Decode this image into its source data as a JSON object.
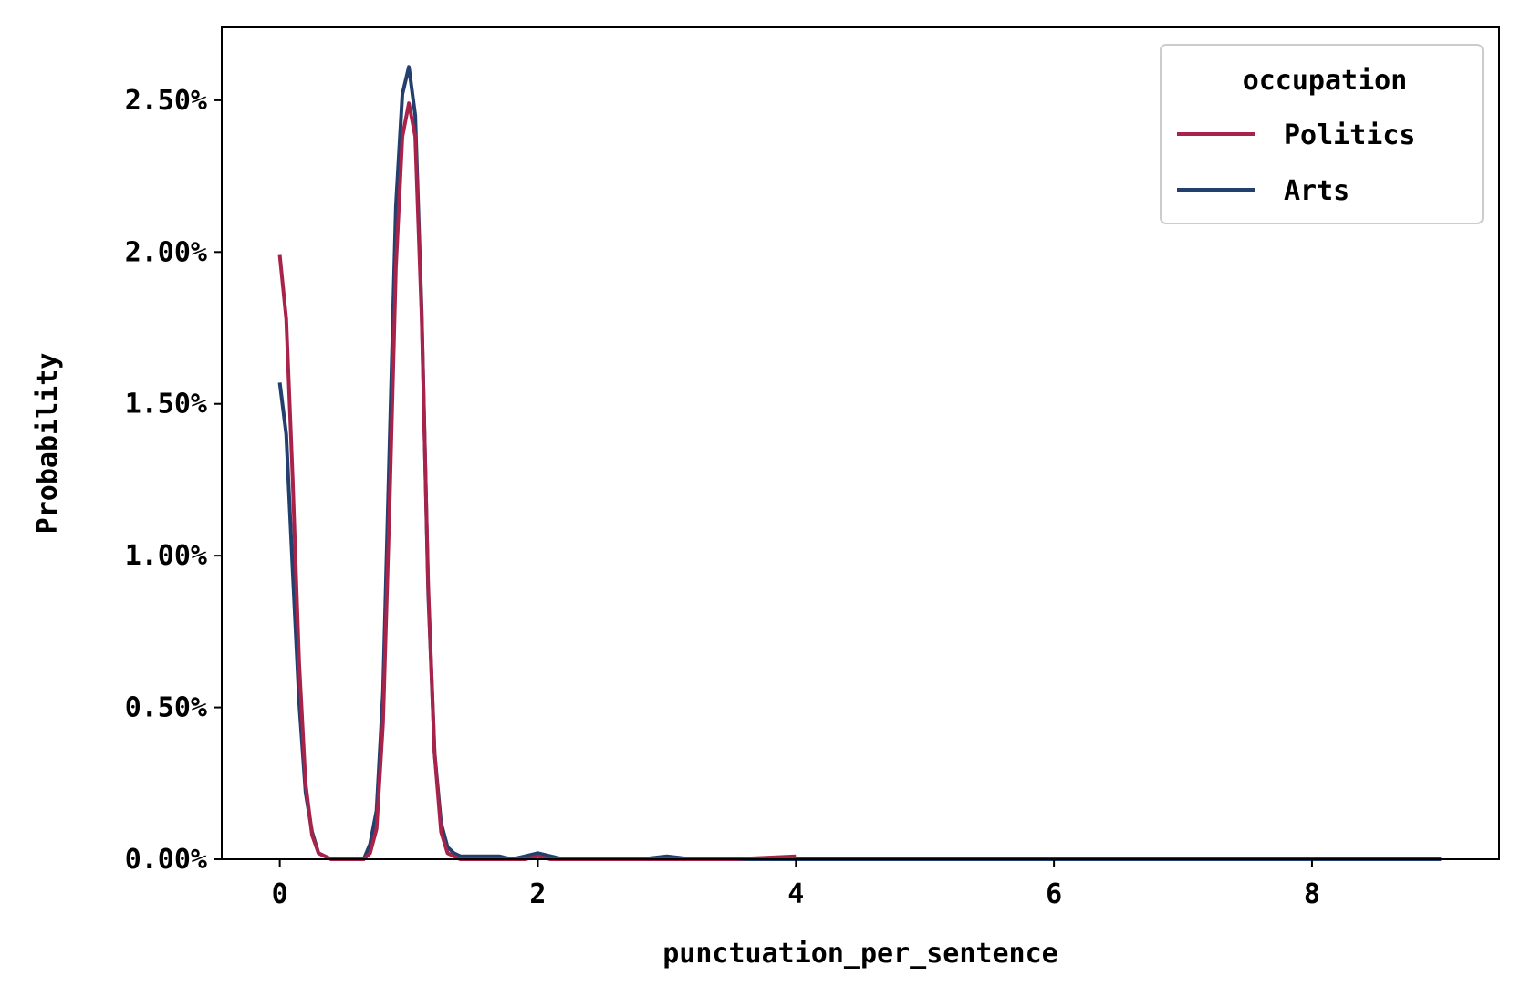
{
  "chart_data": {
    "type": "line",
    "title": "",
    "xlabel": "punctuation_per_sentence",
    "ylabel": "Probability",
    "xlim": [
      -0.45,
      9.45
    ],
    "ylim": [
      0,
      0.0274
    ],
    "x_ticks": [
      0,
      2,
      4,
      6,
      8
    ],
    "x_tick_labels": [
      "0",
      "2",
      "4",
      "6",
      "8"
    ],
    "y_ticks": [
      0,
      0.005,
      0.01,
      0.015,
      0.02,
      0.025
    ],
    "y_tick_labels": [
      "0.00%",
      "0.50%",
      "1.00%",
      "1.50%",
      "2.00%",
      "2.50%"
    ],
    "grid": false,
    "legend": {
      "title": "occupation",
      "placement": "top-right"
    },
    "series": [
      {
        "name": "Politics",
        "color": "#a8234a",
        "x": [
          0,
          0.05,
          0.1,
          0.15,
          0.2,
          0.25,
          0.3,
          0.35,
          0.4,
          0.5,
          0.6,
          0.65,
          0.7,
          0.75,
          0.8,
          0.85,
          0.9,
          0.95,
          1.0,
          1.05,
          1.1,
          1.15,
          1.2,
          1.25,
          1.3,
          1.35,
          1.4,
          1.5,
          1.7,
          1.9,
          2.0,
          2.1,
          2.3,
          2.5,
          3.0,
          3.5,
          4.0
        ],
        "y": [
          0.0199,
          0.0178,
          0.0125,
          0.0065,
          0.0025,
          0.0008,
          0.0002,
          0.0001,
          0.0,
          0.0,
          0.0,
          0.0,
          0.0002,
          0.001,
          0.0045,
          0.0115,
          0.0195,
          0.0238,
          0.0249,
          0.0238,
          0.0178,
          0.009,
          0.0035,
          0.0009,
          0.0002,
          0.0001,
          0.0,
          0.0,
          0.0,
          0.0,
          0.0001,
          0.0,
          0.0,
          0.0,
          0.0,
          0.0,
          0.0001
        ]
      },
      {
        "name": "Arts",
        "color": "#223f6e",
        "x": [
          0,
          0.05,
          0.1,
          0.15,
          0.2,
          0.25,
          0.3,
          0.35,
          0.4,
          0.5,
          0.6,
          0.65,
          0.7,
          0.75,
          0.8,
          0.85,
          0.9,
          0.95,
          1.0,
          1.05,
          1.1,
          1.15,
          1.2,
          1.25,
          1.3,
          1.35,
          1.4,
          1.5,
          1.6,
          1.7,
          1.8,
          1.9,
          2.0,
          2.1,
          2.2,
          2.3,
          2.5,
          2.8,
          3.0,
          3.2,
          3.5,
          4.0,
          4.5,
          5.0,
          6.0,
          7.0,
          8.0,
          9.0
        ],
        "y": [
          0.0157,
          0.014,
          0.0095,
          0.0052,
          0.0022,
          0.0009,
          0.0002,
          0.0001,
          0.0,
          0.0,
          0.0,
          0.0,
          0.0005,
          0.0016,
          0.0055,
          0.0135,
          0.0215,
          0.0252,
          0.0261,
          0.0245,
          0.018,
          0.0088,
          0.0035,
          0.0012,
          0.0004,
          0.0002,
          0.0001,
          0.0001,
          0.0001,
          0.0001,
          0.0,
          0.0001,
          0.0002,
          0.0001,
          0.0,
          0.0,
          0.0,
          0.0,
          0.0001,
          0.0,
          0.0,
          0.0,
          0.0,
          0.0,
          0.0,
          0.0,
          0.0,
          0.0
        ]
      }
    ]
  }
}
